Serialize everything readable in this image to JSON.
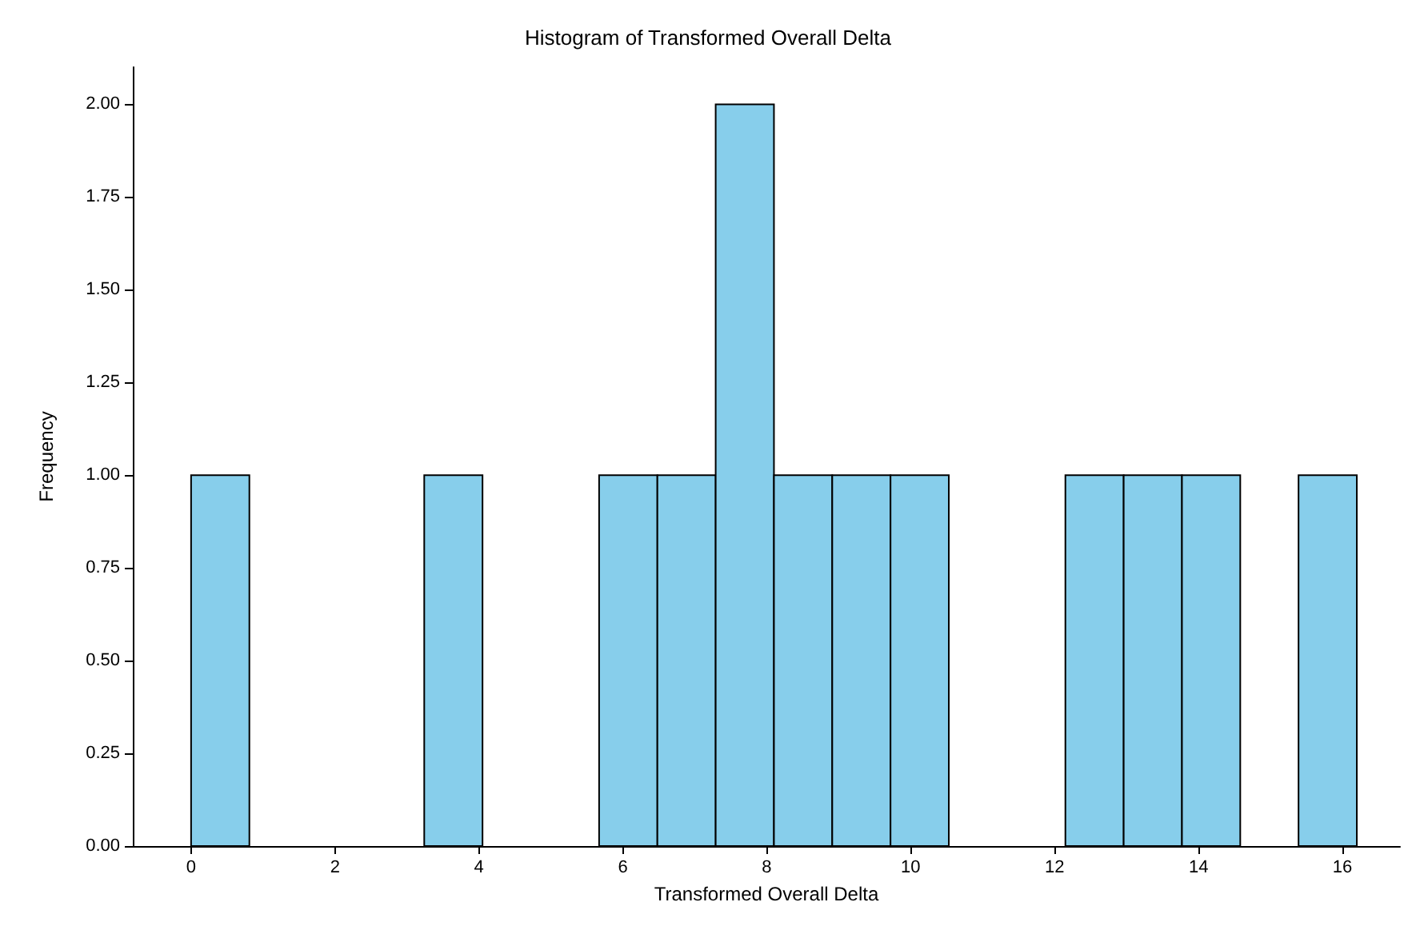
{
  "chart_data": {
    "type": "histogram",
    "title": "Histogram of Transformed Overall Delta",
    "xlabel": "Transformed Overall Delta",
    "ylabel": "Frequency",
    "bins": [
      0,
      0.81,
      1.62,
      2.43,
      3.24,
      4.05,
      4.86,
      5.67,
      6.48,
      7.29,
      8.1,
      8.91,
      9.72,
      10.53,
      11.34,
      12.15,
      12.96,
      13.77,
      14.58,
      15.39,
      16.2
    ],
    "values": [
      1,
      0,
      0,
      0,
      1,
      0,
      0,
      1,
      1,
      2,
      1,
      1,
      1,
      0,
      0,
      1,
      1,
      1,
      0,
      1
    ],
    "color": "#87ceeb",
    "xlim": [
      -0.81,
      16.8
    ],
    "xticks": [
      0,
      2,
      4,
      6,
      8,
      10,
      12,
      14,
      16
    ],
    "ylim": [
      0,
      2.1
    ],
    "yticks": [
      {
        "value": 0,
        "label": "0.00"
      },
      {
        "value": 0.25,
        "label": "0.25"
      },
      {
        "value": 0.5,
        "label": "0.50"
      },
      {
        "value": 0.75,
        "label": "0.75"
      },
      {
        "value": 1,
        "label": "1.00"
      },
      {
        "value": 1.25,
        "label": "1.25"
      },
      {
        "value": 1.5,
        "label": "1.50"
      },
      {
        "value": 1.75,
        "label": "1.75"
      },
      {
        "value": 2,
        "label": "2.00"
      }
    ],
    "grid": false
  }
}
